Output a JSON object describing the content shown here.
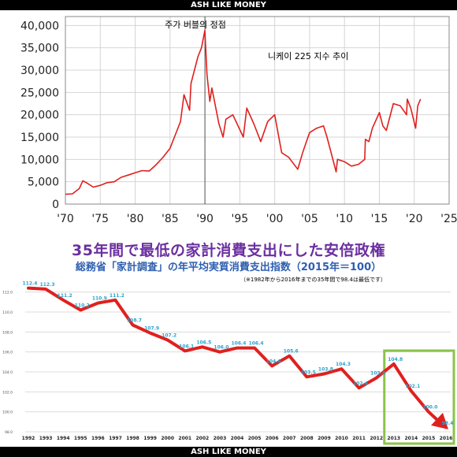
{
  "banner_top": "ASH LIKE MONEY",
  "banner_bottom": "ASH LIKE MONEY",
  "headline": "35年間で最低の家計消費支出にした安倍政権",
  "subtitle": "総務省「家計調査」の年平均実質消費支出指数（2015年＝100）",
  "note": "（※1982年から2016年までの35年間で98.4は最低です）",
  "chart_data": [
    {
      "type": "line",
      "title": "주가 버블의 정점",
      "annotation": "니케이 225 지수 추이",
      "x_ticks": [
        "'70",
        "'75",
        "'80",
        "'85",
        "'90",
        "'95",
        "'00",
        "'05",
        "'10",
        "'15",
        "'20",
        "'25"
      ],
      "y_ticks": [
        "0",
        "5,000",
        "10,000",
        "15,000",
        "20,000",
        "25,000",
        "30,000",
        "35,000",
        "40,000"
      ],
      "xlim": [
        1970,
        2025
      ],
      "ylim": [
        0,
        42000
      ],
      "grid": true,
      "series": [
        {
          "color": "#e0201e",
          "x": [
            1970,
            1971,
            1972,
            1972.5,
            1973,
            1974,
            1975,
            1976,
            1977,
            1978,
            1979,
            1980,
            1981,
            1982,
            1983,
            1984,
            1985,
            1986,
            1986.5,
            1987,
            1987.8,
            1988,
            1989,
            1989.5,
            1989.99,
            1990.3,
            1990.7,
            1991,
            1992,
            1992.6,
            1993,
            1994,
            1995.5,
            1996,
            1997,
            1998,
            1999,
            2000,
            2001,
            2002,
            2003.3,
            2004,
            2005,
            2006,
            2007,
            2007.5,
            2008,
            2008.8,
            2009,
            2010,
            2011,
            2012,
            2012.9,
            2013,
            2013.5,
            2014,
            2015,
            2015.5,
            2016,
            2017,
            2018,
            2018.9,
            2019,
            2019.5,
            2020.2,
            2020.5,
            2020.9
          ],
          "y": [
            2200,
            2300,
            3500,
            5200,
            4800,
            3800,
            4200,
            4800,
            5000,
            6000,
            6500,
            7000,
            7500,
            7400,
            8800,
            10500,
            12500,
            16500,
            18500,
            24500,
            21000,
            27000,
            33000,
            35000,
            38900,
            29000,
            23000,
            26000,
            18000,
            15000,
            19000,
            20000,
            15000,
            21500,
            18000,
            14000,
            18500,
            20000,
            11500,
            10500,
            7800,
            11500,
            16000,
            17000,
            17500,
            15000,
            12000,
            7200,
            10000,
            9500,
            8500,
            8900,
            10000,
            14500,
            14000,
            17000,
            20500,
            17500,
            16500,
            22500,
            22000,
            20000,
            23500,
            21500,
            17000,
            22000,
            23500
          ]
        }
      ],
      "vline_x": 1990
    },
    {
      "type": "line",
      "title": "総務省「家計調査」の年平均実質消費支出指数（2015年＝100）",
      "categories": [
        "1992",
        "1993",
        "1994",
        "1995",
        "1996",
        "1997",
        "1998",
        "1999",
        "2000",
        "2001",
        "2002",
        "2003",
        "2004",
        "2005",
        "2006",
        "2007",
        "2008",
        "2009",
        "2010",
        "2011",
        "2012",
        "2013",
        "2014",
        "2015",
        "2016"
      ],
      "values": [
        112.4,
        112.3,
        111.2,
        110.2,
        110.9,
        111.2,
        108.7,
        107.9,
        107.2,
        106.1,
        106.5,
        106.0,
        106.4,
        106.4,
        104.6,
        105.6,
        103.5,
        103.8,
        104.3,
        102.4,
        103.4,
        104.8,
        102.1,
        100.0,
        98.4
      ],
      "labels": [
        "112.4",
        "112.3",
        "111.2",
        "110.2",
        "110.9",
        "111.2",
        "108.7",
        "107.9",
        "107.2",
        "106.1",
        "106.5",
        "106.0",
        "106.4",
        "106.4",
        "104.6",
        "105.6",
        "103.5",
        "103.8",
        "104.3",
        "102.4",
        "103.4",
        "104.8",
        "102.1",
        "100.0",
        "98.4"
      ],
      "y_ticks": [
        "98.0",
        "100.0",
        "102.0",
        "104.0",
        "106.0",
        "108.0",
        "110.0",
        "112.0"
      ],
      "ylim": [
        98,
        113
      ],
      "grid": true,
      "line_color": "#e0201e",
      "label_color": "#29a3cf",
      "highlight": {
        "from": "2013",
        "to": "2016",
        "color": "#8bc34a"
      }
    }
  ]
}
